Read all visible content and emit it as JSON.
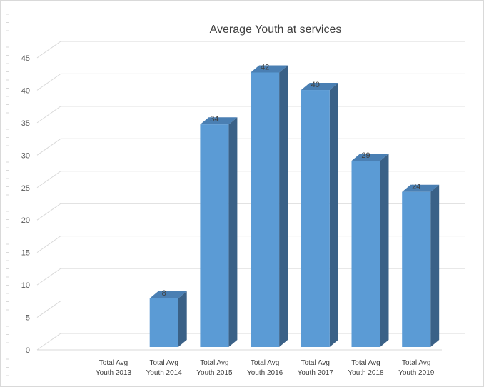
{
  "chart_data": {
    "type": "bar",
    "title": "Average Youth at services",
    "xlabel": "",
    "ylabel": "",
    "categories": [
      [
        "Total Avg",
        "Youth 2013"
      ],
      [
        "Total Avg",
        "Youth 2014"
      ],
      [
        "Total Avg",
        "Youth 2015"
      ],
      [
        "Total Avg",
        "Youth 2016"
      ],
      [
        "Total Avg",
        "Youth 2017"
      ],
      [
        "Total Avg",
        "Youth 2018"
      ],
      [
        "Total Avg",
        "Youth 2019"
      ]
    ],
    "values": [
      0,
      7.5,
      34.3,
      42.3,
      39.6,
      28.7,
      23.9
    ],
    "data_labels": [
      "",
      "8",
      "34",
      "42",
      "40",
      "29",
      "24"
    ],
    "ylim": [
      0,
      45
    ],
    "yticks": [
      "0",
      "5",
      "10",
      "15",
      "20",
      "25",
      "30",
      "35",
      "40",
      "45"
    ],
    "grid": true,
    "legend": "none",
    "three_d": true,
    "colors": {
      "bar_front": "#5b9bd5",
      "bar_top": "#4a7fb3",
      "bar_side": "#3a6187",
      "grid": "#d9d9d9",
      "floor": "#d9d9d9"
    }
  }
}
